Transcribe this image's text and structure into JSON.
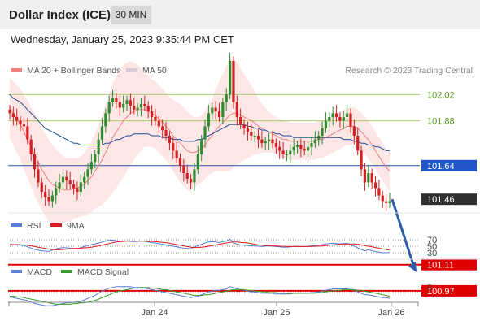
{
  "header": {
    "title": "Dollar Index (ICE)",
    "interval": "30 MIN"
  },
  "datetime": "Wednesday, January 25, 2023 9:35:44 PM CET",
  "legend": {
    "ma20": {
      "label": "MA 20 + Bollinger Bands",
      "color": "#f08080"
    },
    "ma50": {
      "label": "MA 50",
      "color": "#1f4e96"
    },
    "credit": "Research © 2023 Trading Central"
  },
  "levels": [
    {
      "value": "102.02",
      "style": "green"
    },
    {
      "value": "101.88",
      "style": "green"
    },
    {
      "value": "101.64",
      "style": "blue"
    },
    {
      "value": "101.46",
      "style": "dark"
    },
    {
      "value": "101.11",
      "style": "red"
    },
    {
      "value": "100.97",
      "style": "red"
    }
  ],
  "rsi_panel": {
    "legend": [
      {
        "label": "RSI",
        "color": "#5b7fd6"
      },
      {
        "label": "9MA",
        "color": "#d81e1e"
      }
    ],
    "ticks": [
      "70",
      "50",
      "30"
    ]
  },
  "macd_panel": {
    "legend": [
      {
        "label": "MACD",
        "color": "#5b7fd6"
      },
      {
        "label": "MACD Signal",
        "color": "#3a9c2e"
      }
    ],
    "ticks": [
      "0"
    ]
  },
  "xaxis": {
    "labels": [
      "Jan 24",
      "Jan 25",
      "Jan 26"
    ]
  },
  "chart_data": {
    "type": "candlestick",
    "unit": "index points",
    "ylim": [
      100.86,
      102.28
    ],
    "close_series": [
      101.92,
      101.9,
      101.88,
      101.86,
      101.85,
      101.78,
      101.7,
      101.62,
      101.55,
      101.5,
      101.47,
      101.45,
      101.48,
      101.52,
      101.55,
      101.58,
      101.56,
      101.54,
      101.52,
      101.5,
      101.55,
      101.58,
      101.62,
      101.66,
      101.7,
      101.78,
      101.85,
      101.92,
      101.98,
      102.0,
      101.98,
      101.95,
      101.97,
      101.99,
      101.96,
      101.94,
      101.95,
      101.97,
      101.96,
      101.93,
      101.9,
      101.88,
      101.85,
      101.83,
      101.8,
      101.76,
      101.72,
      101.68,
      101.64,
      101.6,
      101.57,
      101.55,
      101.62,
      101.7,
      101.78,
      101.85,
      101.92,
      101.95,
      101.93,
      101.9,
      101.98,
      102.02,
      102.2,
      101.98,
      101.9,
      101.86,
      101.84,
      101.82,
      101.8,
      101.8,
      101.78,
      101.76,
      101.77,
      101.78,
      101.76,
      101.74,
      101.72,
      101.7,
      101.7,
      101.72,
      101.74,
      101.75,
      101.73,
      101.72,
      101.74,
      101.76,
      101.78,
      101.8,
      101.84,
      101.88,
      101.9,
      101.92,
      101.9,
      101.88,
      101.9,
      101.92,
      101.85,
      101.8,
      101.72,
      101.62,
      101.55,
      101.6,
      101.55,
      101.52,
      101.48,
      101.45,
      101.44,
      101.45
    ],
    "ma50_series": [
      102.02,
      102.0,
      101.99,
      101.98,
      101.96,
      101.94,
      101.92,
      101.9,
      101.88,
      101.86,
      101.84,
      101.83,
      101.82,
      101.81,
      101.8,
      101.79,
      101.78,
      101.77,
      101.76,
      101.76,
      101.75,
      101.75,
      101.75,
      101.75,
      101.75,
      101.75,
      101.75,
      101.76,
      101.76,
      101.77,
      101.78,
      101.78,
      101.79,
      101.8,
      101.8,
      101.81,
      101.81,
      101.81,
      101.81,
      101.81,
      101.8,
      101.8,
      101.8,
      101.79,
      101.79,
      101.79,
      101.78,
      101.78,
      101.78,
      101.77,
      101.77,
      101.77,
      101.77,
      101.78,
      101.78,
      101.79,
      101.8,
      101.81,
      101.82,
      101.83,
      101.84,
      101.85,
      101.86,
      101.86,
      101.86,
      101.86,
      101.86,
      101.85,
      101.85,
      101.84,
      101.84,
      101.83,
      101.83,
      101.82,
      101.82,
      101.81,
      101.81,
      101.8,
      101.8,
      101.8,
      101.79,
      101.79,
      101.79,
      101.79,
      101.79,
      101.79,
      101.79,
      101.79,
      101.79,
      101.79,
      101.79,
      101.79,
      101.79,
      101.79,
      101.78,
      101.78,
      101.78,
      101.77,
      101.77,
      101.76,
      101.76,
      101.75,
      101.75,
      101.74,
      101.74,
      101.73,
      101.72,
      101.72
    ],
    "ma20_series": [
      101.95,
      101.92,
      101.89,
      101.86,
      101.82,
      101.78,
      101.74,
      101.7,
      101.66,
      101.62,
      101.59,
      101.56,
      101.54,
      101.53,
      101.52,
      101.51,
      101.51,
      101.51,
      101.52,
      101.52,
      101.53,
      101.54,
      101.56,
      101.58,
      101.61,
      101.64,
      101.67,
      101.71,
      101.75,
      101.79,
      101.82,
      101.85,
      101.88,
      101.9,
      101.92,
      101.93,
      101.94,
      101.94,
      101.94,
      101.93,
      101.92,
      101.91,
      101.89,
      101.87,
      101.85,
      101.83,
      101.8,
      101.78,
      101.76,
      101.74,
      101.72,
      101.71,
      101.71,
      101.72,
      101.73,
      101.75,
      101.78,
      101.8,
      101.83,
      101.85,
      101.87,
      101.89,
      101.91,
      101.92,
      101.92,
      101.91,
      101.9,
      101.89,
      101.88,
      101.87,
      101.85,
      101.84,
      101.83,
      101.82,
      101.81,
      101.8,
      101.79,
      101.78,
      101.78,
      101.77,
      101.77,
      101.77,
      101.77,
      101.77,
      101.77,
      101.77,
      101.77,
      101.78,
      101.78,
      101.79,
      101.8,
      101.81,
      101.82,
      101.83,
      101.84,
      101.85,
      101.85,
      101.85,
      101.84,
      101.82,
      101.8,
      101.78,
      101.75,
      101.72,
      101.69,
      101.66,
      101.63,
      101.61
    ],
    "bollinger_width": [
      0.16,
      0.17,
      0.18,
      0.19,
      0.2,
      0.21,
      0.21,
      0.22,
      0.22,
      0.22,
      0.22,
      0.22,
      0.21,
      0.2,
      0.19,
      0.18,
      0.17,
      0.17,
      0.16,
      0.16,
      0.16,
      0.17,
      0.18,
      0.19,
      0.2,
      0.22,
      0.24,
      0.26,
      0.28,
      0.29,
      0.3,
      0.3,
      0.3,
      0.29,
      0.28,
      0.26,
      0.24,
      0.22,
      0.2,
      0.19,
      0.18,
      0.18,
      0.18,
      0.18,
      0.18,
      0.18,
      0.19,
      0.2,
      0.21,
      0.21,
      0.21,
      0.2,
      0.19,
      0.18,
      0.18,
      0.18,
      0.19,
      0.2,
      0.22,
      0.24,
      0.26,
      0.28,
      0.3,
      0.29,
      0.27,
      0.25,
      0.23,
      0.21,
      0.19,
      0.17,
      0.15,
      0.13,
      0.12,
      0.11,
      0.1,
      0.1,
      0.1,
      0.1,
      0.1,
      0.1,
      0.1,
      0.1,
      0.1,
      0.1,
      0.1,
      0.1,
      0.1,
      0.1,
      0.1,
      0.1,
      0.1,
      0.1,
      0.1,
      0.1,
      0.1,
      0.1,
      0.1,
      0.1,
      0.1,
      0.1,
      0.1,
      0.1,
      0.1,
      0.1,
      0.1,
      0.1,
      0.1,
      0.1
    ],
    "forecast": {
      "from": 101.46,
      "to": 101.07,
      "direction": "down"
    },
    "rsi_series": [
      56,
      55,
      54,
      53,
      52,
      48,
      44,
      40,
      38,
      36,
      35,
      34,
      38,
      42,
      44,
      46,
      45,
      44,
      43,
      42,
      46,
      49,
      52,
      55,
      57,
      60,
      63,
      66,
      68,
      69,
      67,
      65,
      66,
      67,
      65,
      64,
      65,
      66,
      65,
      63,
      61,
      60,
      58,
      56,
      54,
      52,
      50,
      48,
      46,
      44,
      43,
      42,
      47,
      52,
      56,
      60,
      63,
      64,
      63,
      61,
      64,
      66,
      72,
      60,
      56,
      54,
      53,
      52,
      51,
      51,
      50,
      49,
      50,
      51,
      50,
      49,
      48,
      47,
      47,
      48,
      49,
      50,
      49,
      49,
      50,
      51,
      52,
      53,
      55,
      57,
      58,
      59,
      58,
      57,
      58,
      59,
      54,
      50,
      45,
      40,
      36,
      39,
      36,
      34,
      32,
      30,
      30,
      31
    ],
    "rsi_ma9_series": [
      55,
      55,
      55,
      54,
      54,
      53,
      51,
      49,
      47,
      45,
      43,
      41,
      40,
      39,
      39,
      40,
      41,
      42,
      43,
      43,
      44,
      45,
      46,
      47,
      49,
      51,
      53,
      56,
      58,
      61,
      63,
      64,
      65,
      66,
      66,
      66,
      66,
      66,
      66,
      65,
      65,
      64,
      63,
      62,
      61,
      59,
      57,
      55,
      53,
      51,
      49,
      47,
      46,
      46,
      47,
      48,
      50,
      52,
      54,
      56,
      58,
      60,
      62,
      63,
      63,
      62,
      61,
      60,
      58,
      56,
      54,
      53,
      52,
      52,
      51,
      51,
      50,
      50,
      49,
      49,
      49,
      49,
      49,
      49,
      49,
      49,
      50,
      50,
      51,
      52,
      53,
      54,
      55,
      56,
      57,
      57,
      57,
      57,
      56,
      54,
      52,
      50,
      48,
      46,
      44,
      42,
      40,
      38
    ],
    "macd_series": [
      -0.06,
      -0.07,
      -0.08,
      -0.09,
      -0.1,
      -0.11,
      -0.13,
      -0.15,
      -0.16,
      -0.17,
      -0.18,
      -0.18,
      -0.18,
      -0.17,
      -0.16,
      -0.15,
      -0.14,
      -0.14,
      -0.13,
      -0.13,
      -0.12,
      -0.1,
      -0.08,
      -0.06,
      -0.04,
      -0.01,
      0.02,
      0.04,
      0.06,
      0.07,
      0.08,
      0.08,
      0.08,
      0.08,
      0.08,
      0.07,
      0.07,
      0.07,
      0.06,
      0.05,
      0.04,
      0.03,
      0.02,
      0.01,
      0.0,
      -0.01,
      -0.02,
      -0.03,
      -0.04,
      -0.05,
      -0.06,
      -0.07,
      -0.06,
      -0.05,
      -0.03,
      -0.01,
      0.01,
      0.02,
      0.03,
      0.03,
      0.04,
      0.05,
      0.08,
      0.07,
      0.05,
      0.04,
      0.03,
      0.02,
      0.01,
      0.01,
      0.0,
      -0.01,
      -0.01,
      -0.01,
      -0.01,
      -0.02,
      -0.02,
      -0.02,
      -0.02,
      -0.02,
      -0.01,
      -0.01,
      -0.01,
      -0.01,
      -0.01,
      0.0,
      0.0,
      0.01,
      0.02,
      0.03,
      0.04,
      0.05,
      0.05,
      0.05,
      0.05,
      0.05,
      0.04,
      0.03,
      0.01,
      -0.01,
      -0.03,
      -0.03,
      -0.04,
      -0.05,
      -0.06,
      -0.07,
      -0.07,
      -0.08
    ],
    "macd_signal_series": [
      -0.05,
      -0.05,
      -0.06,
      -0.06,
      -0.07,
      -0.08,
      -0.09,
      -0.1,
      -0.11,
      -0.12,
      -0.13,
      -0.14,
      -0.15,
      -0.16,
      -0.16,
      -0.16,
      -0.16,
      -0.16,
      -0.15,
      -0.15,
      -0.14,
      -0.14,
      -0.13,
      -0.12,
      -0.11,
      -0.09,
      -0.07,
      -0.05,
      -0.03,
      -0.01,
      0.01,
      0.02,
      0.03,
      0.04,
      0.05,
      0.06,
      0.06,
      0.07,
      0.07,
      0.07,
      0.06,
      0.06,
      0.05,
      0.04,
      0.04,
      0.03,
      0.02,
      0.01,
      0.0,
      -0.01,
      -0.02,
      -0.03,
      -0.04,
      -0.04,
      -0.04,
      -0.03,
      -0.03,
      -0.02,
      -0.01,
      0.0,
      0.01,
      0.02,
      0.03,
      0.04,
      0.04,
      0.04,
      0.04,
      0.03,
      0.03,
      0.02,
      0.02,
      0.01,
      0.01,
      0.0,
      0.0,
      0.0,
      -0.01,
      -0.01,
      -0.01,
      -0.01,
      -0.01,
      -0.01,
      -0.01,
      -0.01,
      -0.01,
      -0.01,
      -0.01,
      0.0,
      0.0,
      0.01,
      0.02,
      0.02,
      0.03,
      0.03,
      0.04,
      0.04,
      0.04,
      0.04,
      0.03,
      0.03,
      0.02,
      0.01,
      0.0,
      -0.01,
      -0.02,
      -0.03,
      -0.04,
      -0.05
    ]
  }
}
